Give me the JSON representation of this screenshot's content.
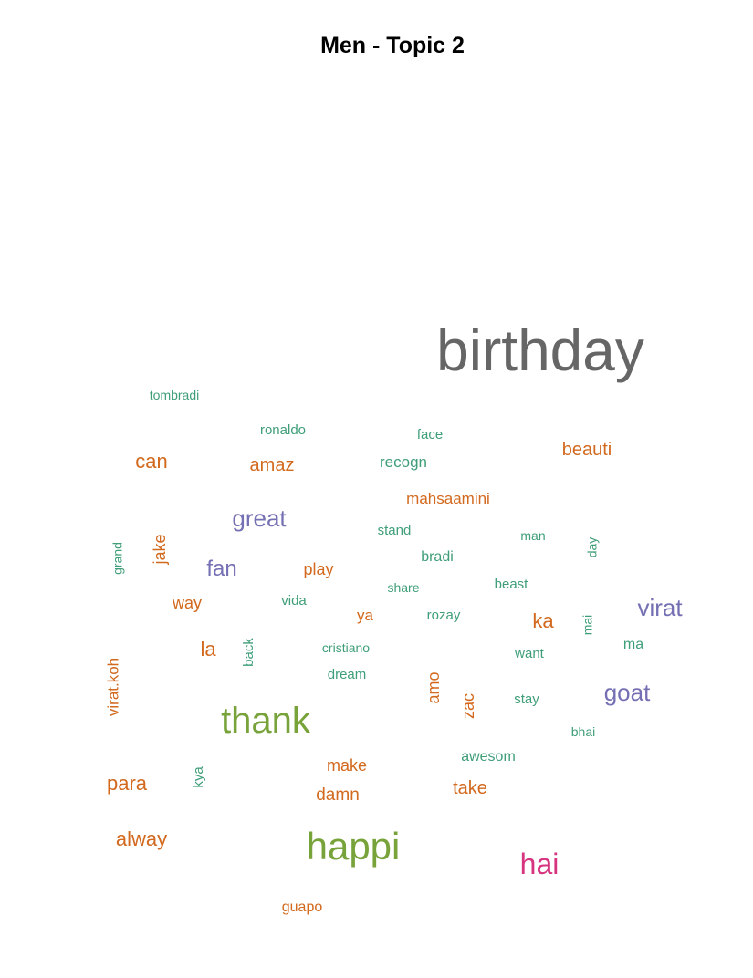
{
  "chart_data": {
    "type": "wordcloud",
    "title": "Men - Topic 2",
    "colors": {
      "grey": "#666666",
      "green": "#77A33A",
      "teal": "#3F9E78",
      "orange": "#D2691E",
      "purple": "#7570B3",
      "magenta": "#D6347F"
    },
    "words": [
      {
        "word": "birthday",
        "color": "grey"
      },
      {
        "word": "thank",
        "color": "green"
      },
      {
        "word": "happi",
        "color": "green"
      },
      {
        "word": "hai",
        "color": "magenta"
      },
      {
        "word": "great",
        "color": "purple"
      },
      {
        "word": "virat",
        "color": "purple"
      },
      {
        "word": "goat",
        "color": "purple"
      },
      {
        "word": "fan",
        "color": "purple"
      },
      {
        "word": "can",
        "color": "orange"
      },
      {
        "word": "amaz",
        "color": "orange"
      },
      {
        "word": "beauti",
        "color": "orange"
      },
      {
        "word": "mahsaamini",
        "color": "orange"
      },
      {
        "word": "play",
        "color": "orange"
      },
      {
        "word": "way",
        "color": "orange"
      },
      {
        "word": "ya",
        "color": "orange"
      },
      {
        "word": "ka",
        "color": "orange"
      },
      {
        "word": "la",
        "color": "orange"
      },
      {
        "word": "para",
        "color": "orange"
      },
      {
        "word": "alway",
        "color": "orange"
      },
      {
        "word": "make",
        "color": "orange"
      },
      {
        "word": "damn",
        "color": "orange"
      },
      {
        "word": "take",
        "color": "orange"
      },
      {
        "word": "guapo",
        "color": "orange"
      },
      {
        "word": "jake",
        "color": "orange"
      },
      {
        "word": "virat.koh",
        "color": "orange"
      },
      {
        "word": "amo",
        "color": "orange"
      },
      {
        "word": "zac",
        "color": "orange"
      },
      {
        "word": "tombradi",
        "color": "teal"
      },
      {
        "word": "ronaldo",
        "color": "teal"
      },
      {
        "word": "face",
        "color": "teal"
      },
      {
        "word": "recogn",
        "color": "teal"
      },
      {
        "word": "stand",
        "color": "teal"
      },
      {
        "word": "man",
        "color": "teal"
      },
      {
        "word": "bradi",
        "color": "teal"
      },
      {
        "word": "share",
        "color": "teal"
      },
      {
        "word": "beast",
        "color": "teal"
      },
      {
        "word": "vida",
        "color": "teal"
      },
      {
        "word": "rozay",
        "color": "teal"
      },
      {
        "word": "cristiano",
        "color": "teal"
      },
      {
        "word": "want",
        "color": "teal"
      },
      {
        "word": "ma",
        "color": "teal"
      },
      {
        "word": "dream",
        "color": "teal"
      },
      {
        "word": "stay",
        "color": "teal"
      },
      {
        "word": "bhai",
        "color": "teal"
      },
      {
        "word": "awesom",
        "color": "teal"
      },
      {
        "word": "grand",
        "color": "teal"
      },
      {
        "word": "day",
        "color": "teal"
      },
      {
        "word": "mai",
        "color": "teal"
      },
      {
        "word": "back",
        "color": "teal"
      },
      {
        "word": "kya",
        "color": "teal"
      }
    ]
  }
}
